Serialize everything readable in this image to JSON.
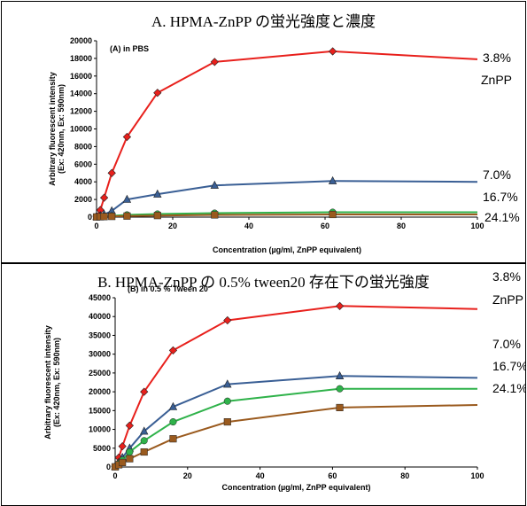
{
  "chart_data": [
    {
      "type": "line",
      "title": "A. HPMA-ZnPP の蛍光強度と濃度",
      "inset_label": "(A) in PBS",
      "xlabel": "Concentration (µg/ml, ZnPP equivalent)",
      "ylabel": [
        "Arbitrary fluorescent intensity",
        "(Ex: 420nm, Ex: 590nm)"
      ],
      "xlim": [
        0,
        100
      ],
      "ylim": [
        0,
        20000
      ],
      "xticks": [
        0,
        20,
        40,
        60,
        80,
        100
      ],
      "yticks": [
        0,
        2000,
        4000,
        6000,
        8000,
        10000,
        12000,
        14000,
        16000,
        18000,
        20000
      ],
      "series": [
        {
          "name": "3.8%",
          "color": "#e8201c",
          "marker": "diamond",
          "x": [
            0,
            1,
            2,
            4,
            8,
            16,
            31,
            62,
            100
          ],
          "y": [
            100,
            800,
            2200,
            5000,
            9100,
            14100,
            17600,
            18800,
            17900
          ]
        },
        {
          "name": "7.0%",
          "color": "#3a5f95",
          "marker": "triangle",
          "x": [
            0,
            1,
            2,
            4,
            8,
            16,
            31,
            62,
            100
          ],
          "y": [
            50,
            150,
            300,
            700,
            2000,
            2600,
            3600,
            4100,
            4000
          ]
        },
        {
          "name": "16.7%",
          "color": "#2fb24a",
          "marker": "circle",
          "x": [
            0,
            1,
            2,
            4,
            8,
            16,
            31,
            62,
            100
          ],
          "y": [
            30,
            60,
            100,
            150,
            250,
            350,
            450,
            550,
            550
          ]
        },
        {
          "name": "24.1%",
          "color": "#9a5a1e",
          "marker": "square",
          "x": [
            0,
            1,
            2,
            4,
            8,
            16,
            31,
            62,
            100
          ],
          "y": [
            20,
            40,
            60,
            80,
            120,
            180,
            250,
            300,
            300
          ]
        }
      ],
      "side_labels": [
        "3.8%",
        "ZnPP",
        "7.0%",
        "16.7%",
        "24.1%"
      ]
    },
    {
      "type": "line",
      "title": "B. HPMA-ZnPP の 0.5% tween20 存在下の蛍光強度",
      "inset_label": "(B) in 0.5 % Tween 20",
      "xlabel": "Concentration (µg/ml, ZnPP equivalent)",
      "ylabel": [
        "Arbitrary fluorescent intensity",
        "(Ex: 420nm, Ex: 590nm)"
      ],
      "xlim": [
        0,
        100
      ],
      "ylim": [
        0,
        45000
      ],
      "xticks": [
        0,
        20,
        40,
        60,
        80,
        100
      ],
      "yticks": [
        0,
        5000,
        10000,
        15000,
        20000,
        25000,
        30000,
        35000,
        40000,
        45000
      ],
      "series": [
        {
          "name": "3.8%",
          "color": "#e8201c",
          "marker": "diamond",
          "x": [
            0,
            1,
            2,
            4,
            8,
            16,
            31,
            62,
            100
          ],
          "y": [
            200,
            2500,
            5500,
            11000,
            20000,
            31000,
            39000,
            42800,
            42000
          ]
        },
        {
          "name": "7.0%",
          "color": "#3a5f95",
          "marker": "triangle",
          "x": [
            0,
            1,
            2,
            4,
            8,
            16,
            31,
            62,
            100
          ],
          "y": [
            100,
            1200,
            2500,
            5000,
            9500,
            16000,
            22000,
            24200,
            23700
          ]
        },
        {
          "name": "16.7%",
          "color": "#2fb24a",
          "marker": "circle",
          "x": [
            0,
            1,
            2,
            4,
            8,
            16,
            31,
            62,
            100
          ],
          "y": [
            80,
            900,
            1800,
            4000,
            7000,
            12000,
            17500,
            20800,
            20800
          ]
        },
        {
          "name": "24.1%",
          "color": "#9a5a1e",
          "marker": "square",
          "x": [
            0,
            1,
            2,
            4,
            8,
            16,
            31,
            62,
            100
          ],
          "y": [
            50,
            600,
            1200,
            2200,
            4000,
            7500,
            12000,
            15800,
            16500
          ]
        }
      ],
      "side_labels": [
        "3.8%",
        "ZnPP",
        "7.0%",
        "16.7%",
        "24.1%"
      ]
    }
  ]
}
